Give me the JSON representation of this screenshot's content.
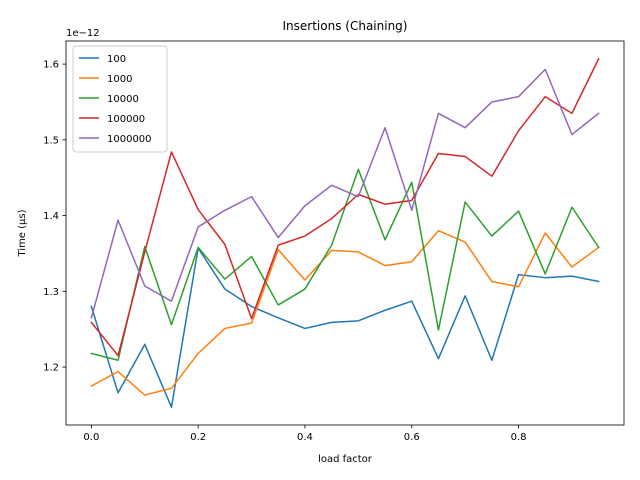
{
  "chart_data": {
    "type": "line",
    "title": "Insertions (Chaining)",
    "xlabel": "load factor",
    "ylabel": "Time (µs)",
    "y_offset_text": "1e−12",
    "xlim": [
      -0.0475,
      0.9975
    ],
    "ylim": [
      1.1235,
      1.6305
    ],
    "x_ticks": [
      0.0,
      0.2,
      0.4,
      0.6,
      0.8
    ],
    "x_tick_labels": [
      "0.0",
      "0.2",
      "0.4",
      "0.6",
      "0.8"
    ],
    "y_ticks": [
      1.2,
      1.3,
      1.4,
      1.5,
      1.6
    ],
    "y_tick_labels": [
      "1.2",
      "1.3",
      "1.4",
      "1.5",
      "1.6"
    ],
    "grid": false,
    "legend_position": "upper-left",
    "x": [
      0.0,
      0.05,
      0.1,
      0.15,
      0.2,
      0.25,
      0.3,
      0.35,
      0.4,
      0.45,
      0.5,
      0.55,
      0.6,
      0.65,
      0.7,
      0.75,
      0.8,
      0.85,
      0.9,
      0.95
    ],
    "series": [
      {
        "name": "100",
        "color": "#1f77b4",
        "values": [
          1.28,
          1.166,
          1.23,
          1.147,
          1.357,
          1.303,
          1.28,
          1.265,
          1.251,
          1.259,
          1.261,
          1.275,
          1.287,
          1.211,
          1.294,
          1.209,
          1.322,
          1.318,
          1.32,
          1.313
        ]
      },
      {
        "name": "1000",
        "color": "#ff7f0e",
        "values": [
          1.175,
          1.194,
          1.163,
          1.172,
          1.218,
          1.251,
          1.258,
          1.355,
          1.315,
          1.354,
          1.352,
          1.334,
          1.339,
          1.38,
          1.365,
          1.313,
          1.306,
          1.377,
          1.332,
          1.358
        ]
      },
      {
        "name": "10000",
        "color": "#2ca02c",
        "values": [
          1.218,
          1.209,
          1.359,
          1.256,
          1.358,
          1.316,
          1.346,
          1.282,
          1.303,
          1.361,
          1.461,
          1.368,
          1.444,
          1.249,
          1.418,
          1.373,
          1.406,
          1.323,
          1.411,
          1.358
        ]
      },
      {
        "name": "100000",
        "color": "#d62728",
        "values": [
          1.259,
          1.215,
          1.352,
          1.484,
          1.408,
          1.362,
          1.264,
          1.361,
          1.373,
          1.396,
          1.428,
          1.415,
          1.42,
          1.482,
          1.478,
          1.452,
          1.512,
          1.557,
          1.535,
          1.607
        ]
      },
      {
        "name": "1000000",
        "color": "#9467bd",
        "values": [
          1.265,
          1.394,
          1.307,
          1.287,
          1.385,
          1.407,
          1.425,
          1.371,
          1.413,
          1.44,
          1.425,
          1.516,
          1.407,
          1.535,
          1.516,
          1.55,
          1.557,
          1.593,
          1.507,
          1.535
        ]
      }
    ]
  }
}
